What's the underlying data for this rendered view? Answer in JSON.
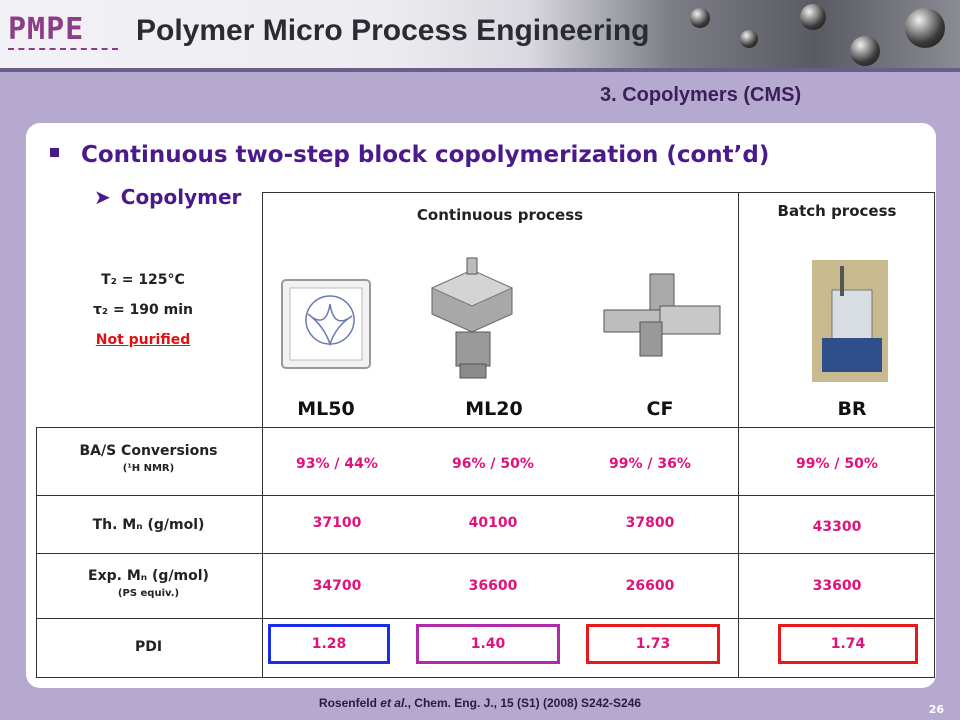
{
  "header": {
    "logo_text": "PMPE",
    "title": "Polymer Micro Process Engineering"
  },
  "section_title": "3. Copolymers (CMS)",
  "heading": "Continuous two-step block copolymerization (cont’d)",
  "subheading": "Copolymer",
  "conditions": {
    "t2_label": "T₂ = 125°C",
    "tau2_label": "τ₂ = 190 min",
    "purification": "Not purified"
  },
  "processes": {
    "continuous": "Continuous process",
    "batch": "Batch process"
  },
  "reactors": [
    "ML50",
    "ML20",
    "CF",
    "BR"
  ],
  "rows": {
    "conversions": {
      "label": "BA/S Conversions",
      "sub": "(¹H NMR)",
      "values": [
        "93% / 44%",
        "96% / 50%",
        "99% / 36%",
        "99% / 50%"
      ]
    },
    "th_mn": {
      "label": "Th. Mₙ (g/mol)",
      "values": [
        "37100",
        "40100",
        "37800",
        "43300"
      ]
    },
    "exp_mn": {
      "label": "Exp. Mₙ (g/mol)",
      "sub": "(PS equiv.)",
      "values": [
        "34700",
        "36600",
        "26600",
        "33600"
      ]
    },
    "pdi": {
      "label": "PDI",
      "values": [
        "1.28",
        "1.40",
        "1.73",
        "1.74"
      ]
    }
  },
  "pdi_colors": [
    "#1a2ee6",
    "#b02aa8",
    "#e61a1a",
    "#e61a1a"
  ],
  "value_color": "#e0137a",
  "footer": {
    "author": "Rosenfeld",
    "etal": "et al",
    "rest": "., Chem. Eng. J., 15 (S1) (2008) S242-S246",
    "page": "26"
  }
}
